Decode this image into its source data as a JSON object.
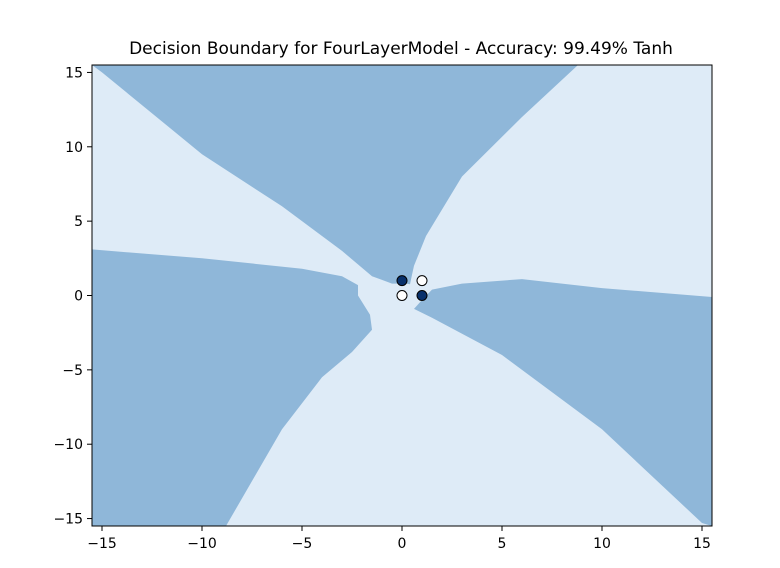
{
  "chart_data": {
    "type": "scatter",
    "title": "Decision Boundary for FourLayerModel - Accuracy: 99.49% Tanh",
    "xlabel": "",
    "ylabel": "",
    "xlim": [
      -15.5,
      15.5
    ],
    "ylim": [
      -15.5,
      15.5
    ],
    "grid": false,
    "x_ticks": [
      {
        "value": -15,
        "label": "−15"
      },
      {
        "value": -10,
        "label": "−10"
      },
      {
        "value": -5,
        "label": "−5"
      },
      {
        "value": 0,
        "label": "0"
      },
      {
        "value": 5,
        "label": "5"
      },
      {
        "value": 10,
        "label": "10"
      },
      {
        "value": 15,
        "label": "15"
      }
    ],
    "y_ticks": [
      {
        "value": -15,
        "label": "−15"
      },
      {
        "value": -10,
        "label": "−10"
      },
      {
        "value": -5,
        "label": "−5"
      },
      {
        "value": 0,
        "label": "0"
      },
      {
        "value": 5,
        "label": "5"
      },
      {
        "value": 10,
        "label": "10"
      },
      {
        "value": 15,
        "label": "15"
      }
    ],
    "points": [
      {
        "x": 0,
        "y": 0,
        "class": 0
      },
      {
        "x": 0,
        "y": 1,
        "class": 1
      },
      {
        "x": 1,
        "y": 0,
        "class": 1
      },
      {
        "x": 1,
        "y": 1,
        "class": 0
      }
    ],
    "region_colors": {
      "class_0": "#deebf7",
      "class_1": "#8fb7d9"
    },
    "point_colors": {
      "class_0": "#ffffff",
      "class_1": "#08306b"
    },
    "regions": [
      {
        "class": 1,
        "polygon": [
          [
            -15.5,
            15.5
          ],
          [
            8.8,
            15.5
          ],
          [
            6.0,
            12.0
          ],
          [
            3.0,
            8.0
          ],
          [
            1.2,
            4.0
          ],
          [
            0.6,
            2.0
          ],
          [
            0.5,
            1.4
          ],
          [
            0.4,
            0.75
          ],
          [
            0.2,
            0.8
          ],
          [
            -0.5,
            0.8
          ],
          [
            -1.5,
            1.3
          ],
          [
            -3.0,
            3.0
          ],
          [
            -6.0,
            6.0
          ],
          [
            -10.0,
            9.5
          ],
          [
            -15.0,
            15.0
          ],
          [
            -15.5,
            15.5
          ]
        ]
      },
      {
        "class": 1,
        "polygon": [
          [
            -15.5,
            3.1
          ],
          [
            -10.0,
            2.5
          ],
          [
            -5.0,
            1.8
          ],
          [
            -3.0,
            1.3
          ],
          [
            -2.2,
            0.7
          ],
          [
            -2.2,
            0.0
          ],
          [
            -1.6,
            -1.3
          ],
          [
            -1.5,
            -2.3
          ],
          [
            -2.5,
            -3.8
          ],
          [
            -4.0,
            -5.5
          ],
          [
            -6.0,
            -9.0
          ],
          [
            -8.8,
            -15.5
          ],
          [
            -15.5,
            -15.5
          ]
        ]
      },
      {
        "class": 1,
        "polygon": [
          [
            15.5,
            -0.1
          ],
          [
            10.0,
            0.5
          ],
          [
            6.0,
            1.1
          ],
          [
            3.0,
            0.8
          ],
          [
            1.5,
            0.4
          ],
          [
            1.0,
            -0.3
          ],
          [
            0.6,
            -0.9
          ],
          [
            1.5,
            -1.5
          ],
          [
            5.0,
            -4.0
          ],
          [
            10.0,
            -9.0
          ],
          [
            15.0,
            -15.3
          ],
          [
            15.5,
            -15.5
          ]
        ]
      }
    ]
  }
}
